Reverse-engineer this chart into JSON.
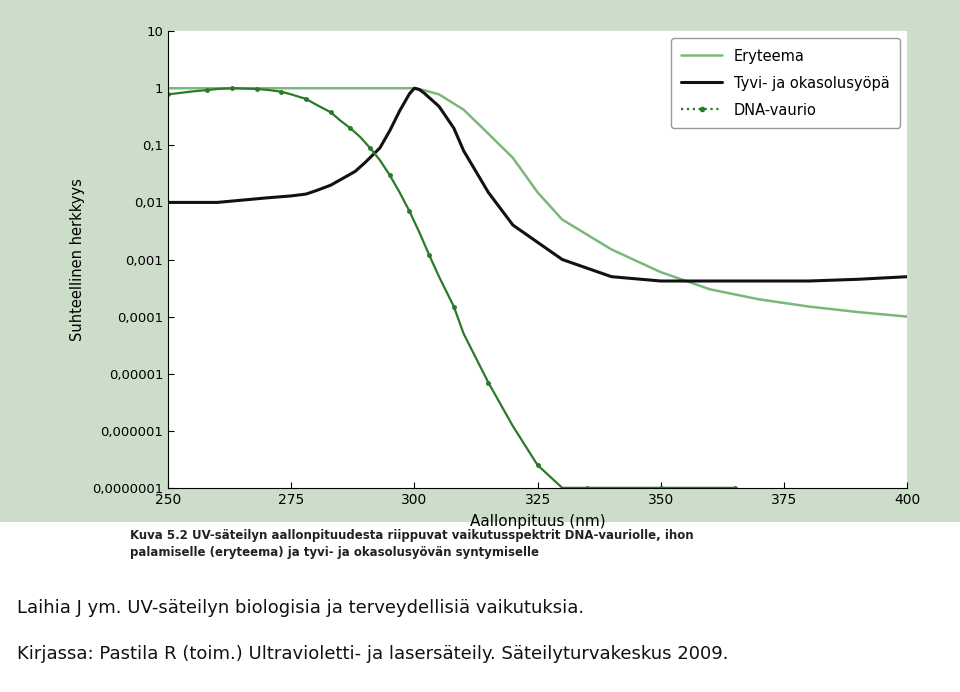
{
  "background_outer": "#ffffff",
  "background_chart_surround": "#ccdeca",
  "plot_bg_color": "#ffffff",
  "xlabel": "Aallonpituus (nm)",
  "ylabel": "Suhteellinen herkkyys",
  "xlim": [
    250,
    400
  ],
  "xticks": [
    250,
    275,
    300,
    325,
    350,
    375,
    400
  ],
  "ytick_vals": [
    1e-07,
    1e-06,
    1e-05,
    0.0001,
    0.001,
    0.01,
    0.1,
    1,
    10
  ],
  "ytick_labels": [
    "0,0000001",
    "0,000001",
    "0,00001",
    "0,0001",
    "0,001",
    "0,01",
    "0,1",
    "1",
    "10"
  ],
  "legend_labels": [
    "Eryteema",
    "Tyvi- ja okasolusyöpä",
    "DNA-vaurio"
  ],
  "legend_colors": [
    "#7ab87a",
    "#111111",
    "#2a7a2a"
  ],
  "caption_bold": "Kuva 5.2 UV-säteilyn aallonpituudesta riippuvat vaikutusspektrit DNA-vauriolle, ihon\npalamiselle (eryteema) ja tyvi- ja okasolusyövän syntymiselle",
  "caption_line1": "Laihia J ym. UV-säteilyn biologisia ja terveydellisiä vaikutuksia.",
  "caption_line2": "Kirjassa: Pastila R (toim.) Ultravioletti- ja lasersäteily. Säteilyturvakeskus 2009."
}
